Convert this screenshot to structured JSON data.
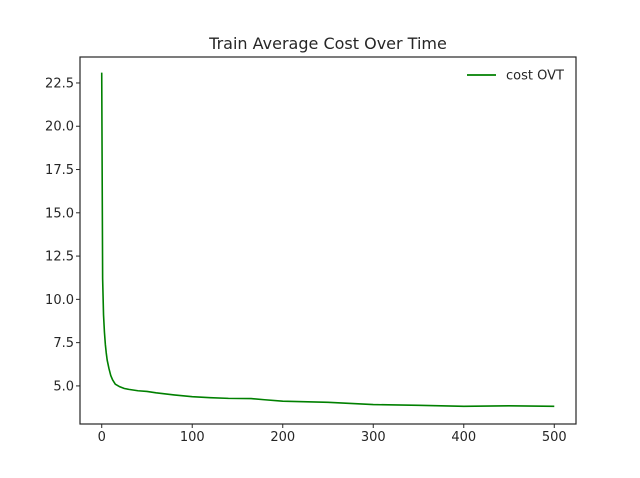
{
  "chart_data": {
    "type": "line",
    "title": "Train Average Cost Over Time",
    "xlabel": "",
    "ylabel": "",
    "xlim": [
      -24,
      524
    ],
    "ylim": [
      2.8,
      24.0
    ],
    "xticks": [
      0,
      100,
      200,
      300,
      400,
      500
    ],
    "yticks": [
      5.0,
      7.5,
      10.0,
      12.5,
      15.0,
      17.5,
      20.0,
      22.5
    ],
    "xtick_labels": [
      "0",
      "100",
      "200",
      "300",
      "400",
      "500"
    ],
    "ytick_labels": [
      "5.0",
      "7.5",
      "10.0",
      "12.5",
      "15.0",
      "17.5",
      "20.0",
      "22.5"
    ],
    "grid": false,
    "legend_position": "top-right",
    "series": [
      {
        "name": "cost OVT",
        "color": "#008000",
        "x": [
          0,
          1,
          2,
          3,
          4,
          5,
          6,
          8,
          10,
          12,
          15,
          20,
          25,
          30,
          40,
          50,
          60,
          80,
          100,
          120,
          140,
          165,
          180,
          200,
          250,
          300,
          350,
          400,
          450,
          500
        ],
        "y": [
          23.1,
          11.2,
          9.1,
          8.1,
          7.4,
          6.9,
          6.5,
          6.0,
          5.6,
          5.35,
          5.1,
          4.95,
          4.85,
          4.8,
          4.72,
          4.68,
          4.6,
          4.48,
          4.38,
          4.32,
          4.28,
          4.27,
          4.2,
          4.12,
          4.05,
          3.92,
          3.88,
          3.82,
          3.85,
          3.82
        ]
      }
    ]
  }
}
